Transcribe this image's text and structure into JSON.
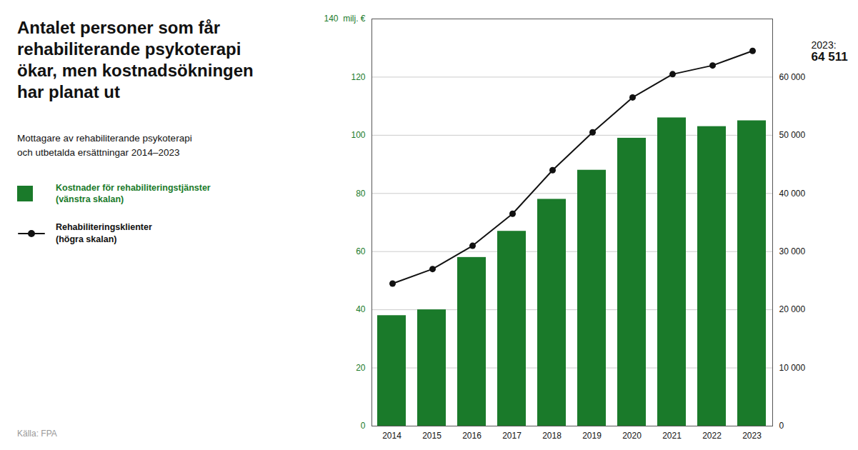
{
  "chart_data": {
    "type": "bar",
    "title": "Antalet personer som får\nrehabiliterande psykoterapi\nökar, men kostnadsökningen\nhar planat ut",
    "subtitle": "Mottagare av rehabiliterande psykoterapi\noch utbetalda ersättningar 2014–2023",
    "categories": [
      "2014",
      "2015",
      "2016",
      "2017",
      "2018",
      "2019",
      "2020",
      "2021",
      "2022",
      "2023"
    ],
    "series": [
      {
        "name": "Kostnader för rehabiliteringstjänster\n(vänstra skalan)",
        "type": "bar",
        "color": "#1a7a2a",
        "values": [
          38,
          40,
          58,
          67,
          78,
          88,
          99,
          106,
          103,
          105
        ]
      },
      {
        "name": "Rehabiliteringsklienter\n(högra skalan)",
        "type": "line",
        "axis": "y2",
        "color": "#111111",
        "marker": "circle",
        "values": [
          24500,
          27000,
          31000,
          36500,
          44000,
          50500,
          56500,
          60500,
          62000,
          64511
        ]
      }
    ],
    "ylim": [
      0,
      140
    ],
    "yticks": [
      0,
      20,
      40,
      60,
      80,
      100,
      120,
      {
        "value": 140,
        "label": "140  milj. €"
      }
    ],
    "y2lim": [
      0,
      70000
    ],
    "y2ticks": [
      0,
      {
        "value": 10000,
        "label": "10 000"
      },
      {
        "value": 20000,
        "label": "20 000"
      },
      {
        "value": 30000,
        "label": "30 000"
      },
      {
        "value": 40000,
        "label": "40 000"
      },
      {
        "value": 50000,
        "label": "50 000"
      },
      {
        "value": 60000,
        "label": "60 000"
      }
    ],
    "grid": true,
    "annotations": [
      "2023:",
      "64 511"
    ],
    "source": "Källa: FPA"
  }
}
